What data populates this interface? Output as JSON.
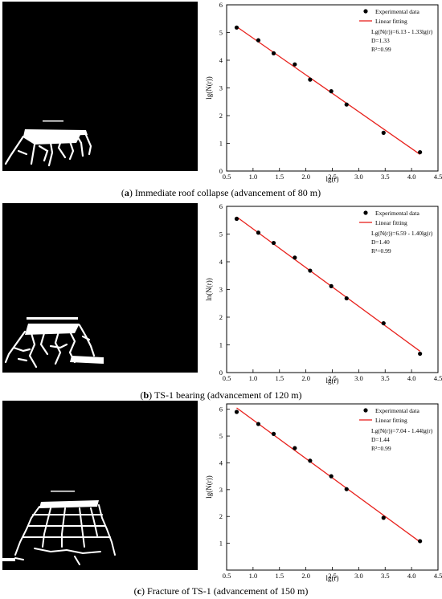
{
  "panels": [
    {
      "caption_tag": "a",
      "caption_text": "Immediate roof collapse (advancement of 80 m)",
      "caption_open": "(",
      "caption_close": ")",
      "image_desc": "binary fracture image 80 m",
      "chart_data": {
        "type": "scatter",
        "xlabel": "lg(r)",
        "ylabel": "lg(N(r))",
        "xlim": [
          0.5,
          4.5
        ],
        "ylim": [
          0,
          6
        ],
        "xticks": [
          0.5,
          1.0,
          1.5,
          2.0,
          2.5,
          3.0,
          3.5,
          4.0,
          4.5
        ],
        "yticks": [
          0,
          1,
          2,
          3,
          4,
          5,
          6
        ],
        "legend_position": "top-right",
        "legend": [
          "Experimental data",
          "Linear fitting"
        ],
        "annotations": [
          "Lg(N(r))=6.13 - 1.33lg(r)",
          "D=1.33",
          "R²=0.99"
        ],
        "series": [
          {
            "name": "Experimental data",
            "x": [
              0.69,
              1.1,
              1.39,
              1.79,
              2.08,
              2.48,
              2.77,
              3.47,
              4.16
            ],
            "y": [
              5.18,
              4.72,
              4.25,
              3.85,
              3.3,
              2.88,
              2.4,
              1.38,
              0.68
            ],
            "color": "#000000"
          },
          {
            "name": "Linear fitting",
            "x": [
              0.69,
              4.16
            ],
            "y": [
              5.21,
              0.6
            ],
            "color": "#e8211c"
          }
        ]
      }
    },
    {
      "caption_tag": "b",
      "caption_text": "TS-1 bearing (advancement of 120 m)",
      "caption_open": "(",
      "caption_close": ")",
      "image_desc": "binary fracture image 120 m",
      "chart_data": {
        "type": "scatter",
        "xlabel": "lg(r)",
        "ylabel": "ln(N(r))",
        "xlim": [
          0.5,
          4.5
        ],
        "ylim": [
          0,
          6
        ],
        "xticks": [
          0.5,
          1.0,
          1.5,
          2.0,
          2.5,
          3.0,
          3.5,
          4.0,
          4.5
        ],
        "yticks": [
          0,
          1,
          2,
          3,
          4,
          5,
          6
        ],
        "legend_position": "top-right",
        "legend": [
          "Experimental data",
          "Linear fitting"
        ],
        "annotations": [
          "Lg(N(r))=6.59 - 1.40lg(r)",
          "D=1.40",
          "R²=0.99"
        ],
        "series": [
          {
            "name": "Experimental data",
            "x": [
              0.69,
              1.1,
              1.39,
              1.79,
              2.08,
              2.48,
              2.77,
              3.47,
              4.16
            ],
            "y": [
              5.55,
              5.05,
              4.68,
              4.15,
              3.68,
              3.12,
              2.68,
              1.78,
              0.68
            ],
            "color": "#000000"
          },
          {
            "name": "Linear fitting",
            "x": [
              0.69,
              4.16
            ],
            "y": [
              5.62,
              0.77
            ],
            "color": "#e8211c"
          }
        ]
      }
    },
    {
      "caption_tag": "c",
      "caption_text": "Fracture of TS-1 (advancement of 150 m)",
      "caption_open": "(",
      "caption_close": ")",
      "image_desc": "binary fracture image 150 m",
      "chart_data": {
        "type": "scatter",
        "xlabel": "lg(r)",
        "ylabel": "lg(N(r))",
        "xlim": [
          0.5,
          4.5
        ],
        "ylim": [
          0,
          6.2
        ],
        "xticks": [
          0.5,
          1.0,
          1.5,
          2.0,
          2.5,
          3.0,
          3.5,
          4.0,
          4.5
        ],
        "yticks": [
          1,
          2,
          3,
          4,
          5,
          6
        ],
        "legend_position": "top-right",
        "legend": [
          "Experimental data",
          "Linear fitting"
        ],
        "annotations": [
          "Lg(N(r))=7.04 - 1.44lg(r)",
          "D=1.44",
          "R²=0.99"
        ],
        "series": [
          {
            "name": "Experimental data",
            "x": [
              0.69,
              1.1,
              1.39,
              1.79,
              2.08,
              2.48,
              2.77,
              3.47,
              4.16
            ],
            "y": [
              5.9,
              5.45,
              5.08,
              4.55,
              4.08,
              3.5,
              3.02,
              1.95,
              1.08
            ],
            "color": "#000000"
          },
          {
            "name": "Linear fitting",
            "x": [
              0.69,
              4.16
            ],
            "y": [
              6.05,
              1.05
            ],
            "color": "#e8211c"
          }
        ]
      }
    }
  ]
}
